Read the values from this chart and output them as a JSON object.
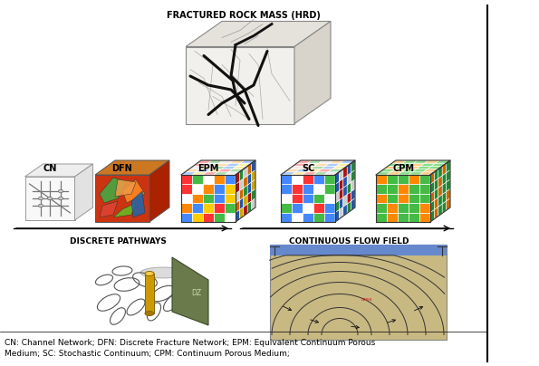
{
  "title_top": "FRACTURED ROCK MASS (HRD)",
  "labels_row2": [
    "CN",
    "DFN",
    "EPM",
    "SC",
    "CPM"
  ],
  "label_left": "DISCRETE PATHWAYS",
  "label_right": "CONTINUOUS FLOW FIELD",
  "caption": "CN: Channel Network; DFN: Discrete Fracture Network; EPM: Equivalent Continuum Porous\nMedium; SC: Stochastic Continuum; CPM: Continuum Porous Medium;",
  "bg_color": "#ffffff",
  "text_color": "#000000",
  "vertical_line_x": 0.905,
  "figsize": [
    5.95,
    4.04
  ],
  "dpi": 100
}
